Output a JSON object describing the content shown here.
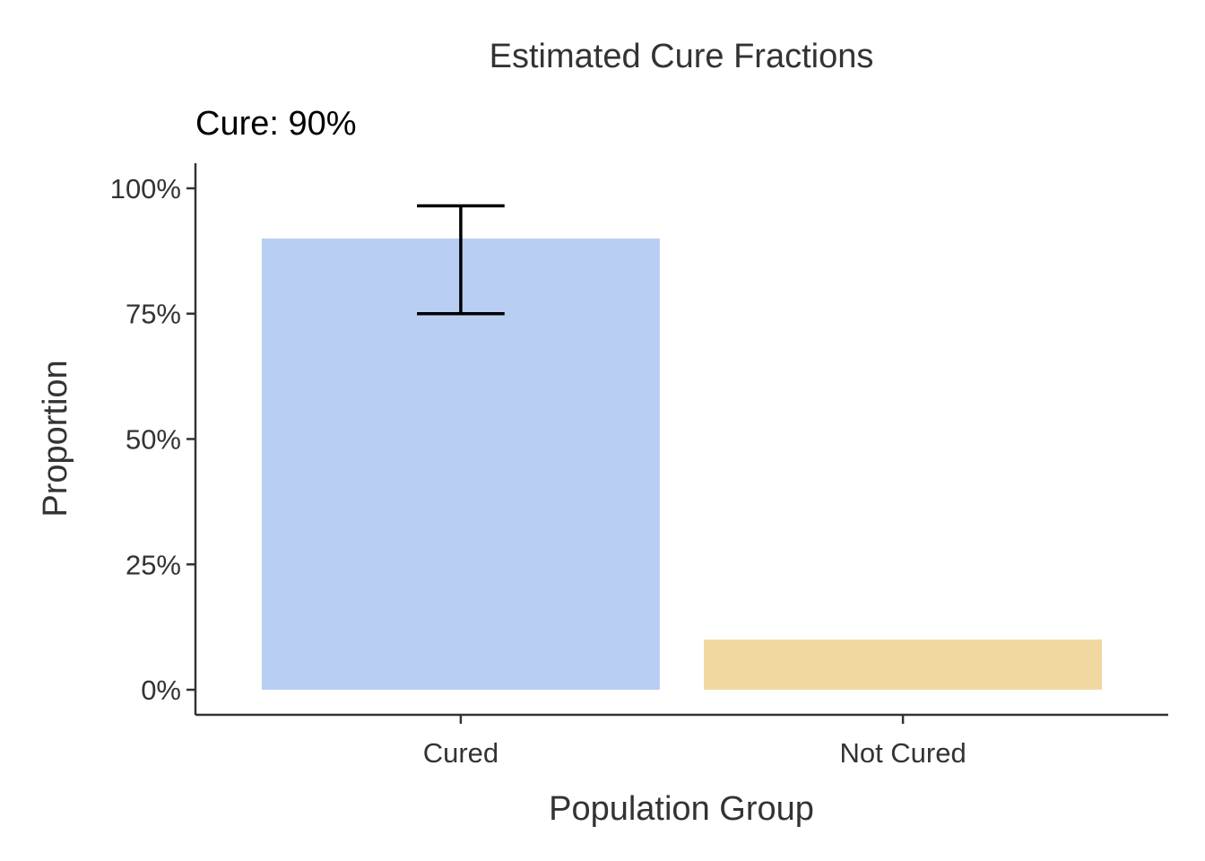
{
  "chart_data": {
    "type": "bar",
    "title": "Estimated Cure Fractions",
    "annotation": "Cure: 90%",
    "xlabel": "Population Group",
    "ylabel": "Proportion",
    "categories": [
      "Cured",
      "Not Cured"
    ],
    "values": [
      0.9,
      0.1
    ],
    "error_bars": [
      {
        "category": "Cured",
        "lower": 0.75,
        "upper": 0.965
      }
    ],
    "colors": [
      "#b8cff3",
      "#f1d7a0"
    ],
    "ylim": [
      -0.05,
      1.05
    ],
    "yticks": [
      0,
      0.25,
      0.5,
      0.75,
      1.0
    ],
    "ytick_labels": [
      "0%",
      "25%",
      "50%",
      "75%",
      "100%"
    ],
    "grid": false,
    "legend": "none"
  }
}
